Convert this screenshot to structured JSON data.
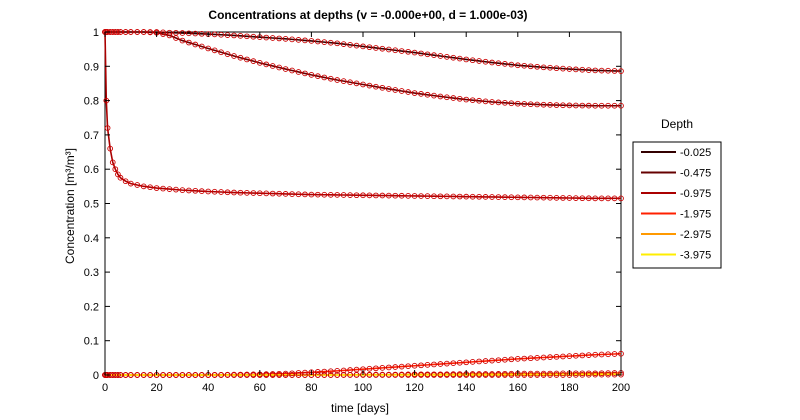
{
  "chart_data": {
    "type": "line",
    "title": "Concentrations at depths (v = -0.000e+00, d = 1.000e-03)",
    "xlabel": "time [days]",
    "ylabel": "Concentration [m³/m³]",
    "xlim": [
      0,
      200
    ],
    "ylim": [
      0,
      1
    ],
    "xticks": [
      "0",
      "20",
      "40",
      "60",
      "80",
      "100",
      "120",
      "140",
      "160",
      "180",
      "200"
    ],
    "yticks": [
      "0",
      "0.1",
      "0.2",
      "0.3",
      "0.4",
      "0.5",
      "0.6",
      "0.7",
      "0.8",
      "0.9",
      "1"
    ],
    "grid": false,
    "legend": {
      "title": "Depth",
      "placement": "right outside"
    },
    "x": [
      0,
      0.5,
      1,
      2,
      3,
      4,
      5,
      6,
      8,
      10,
      15,
      20,
      25,
      30,
      40,
      50,
      60,
      70,
      80,
      90,
      100,
      110,
      120,
      130,
      140,
      150,
      160,
      170,
      180,
      190,
      200
    ],
    "series": [
      {
        "name": "-0.025",
        "color": "#330000",
        "values": [
          1,
          1,
          1,
          1,
          1,
          1,
          1,
          1,
          1,
          1,
          1,
          1,
          0.998,
          0.997,
          0.994,
          0.99,
          0.985,
          0.98,
          0.974,
          0.967,
          0.958,
          0.949,
          0.94,
          0.93,
          0.92,
          0.911,
          0.903,
          0.897,
          0.892,
          0.888,
          0.886
        ]
      },
      {
        "name": "-0.475",
        "color": "#660000",
        "values": [
          1,
          1,
          1,
          1,
          1,
          1,
          1,
          1,
          1,
          1,
          1,
          0.998,
          0.99,
          0.975,
          0.952,
          0.93,
          0.91,
          0.892,
          0.875,
          0.86,
          0.847,
          0.834,
          0.822,
          0.812,
          0.803,
          0.796,
          0.791,
          0.788,
          0.786,
          0.785,
          0.785
        ]
      },
      {
        "name": "-0.975",
        "color": "#aa0000",
        "values": [
          1,
          0.8,
          0.72,
          0.66,
          0.62,
          0.6,
          0.585,
          0.575,
          0.565,
          0.558,
          0.55,
          0.545,
          0.542,
          0.539,
          0.535,
          0.532,
          0.53,
          0.528,
          0.526,
          0.525,
          0.524,
          0.523,
          0.522,
          0.521,
          0.52,
          0.519,
          0.518,
          0.517,
          0.516,
          0.515,
          0.515
        ]
      },
      {
        "name": "-1.975",
        "color": "#ff2000",
        "values": [
          0,
          0,
          0,
          0,
          0,
          0,
          0,
          0,
          0,
          0,
          0,
          0,
          0,
          0,
          0,
          0.001,
          0.002,
          0.004,
          0.008,
          0.012,
          0.017,
          0.022,
          0.027,
          0.032,
          0.037,
          0.042,
          0.047,
          0.051,
          0.055,
          0.059,
          0.062
        ]
      },
      {
        "name": "-2.975",
        "color": "#ff9900",
        "values": [
          0,
          0,
          0,
          0,
          0,
          0,
          0,
          0,
          0,
          0,
          0,
          0,
          0,
          0,
          0,
          0,
          0,
          0,
          0,
          0,
          0.001,
          0.001,
          0.002,
          0.002,
          0.003,
          0.003,
          0.004,
          0.004,
          0.005,
          0.005,
          0.006
        ]
      },
      {
        "name": "-3.975",
        "color": "#ffee00",
        "values": [
          0,
          0,
          0,
          0,
          0,
          0,
          0,
          0,
          0,
          0,
          0,
          0,
          0,
          0,
          0,
          0,
          0,
          0,
          0,
          0,
          0,
          0,
          0,
          0,
          0,
          0,
          0,
          0,
          0,
          0.001,
          0.001
        ]
      }
    ],
    "marker_color": "#cc0000"
  }
}
